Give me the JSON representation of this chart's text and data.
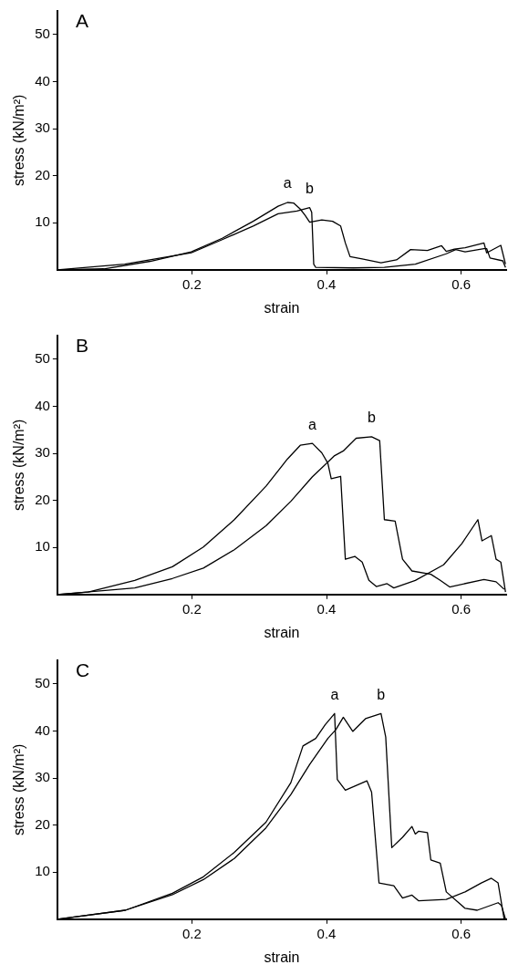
{
  "chart_data": [
    {
      "type": "line",
      "title": "A",
      "xlabel": "strain",
      "ylabel": "stress (kN/m²)",
      "xlim": [
        0,
        0.667
      ],
      "ylim": [
        0,
        55
      ],
      "xticks": [
        0.2,
        0.4,
        0.6
      ],
      "yticks": [
        10,
        20,
        30,
        40,
        50
      ],
      "grid": false,
      "legend": false,
      "marker": "none",
      "line_style": "solid",
      "series": [
        {
          "name": "a",
          "color": "#000000",
          "x": [
            0,
            0.069,
            0.138,
            0.199,
            0.245,
            0.291,
            0.328,
            0.342,
            0.351,
            0.361,
            0.368,
            0.375,
            0.393,
            0.409,
            0.421,
            0.428,
            0.435,
            0.453,
            0.481,
            0.504,
            0.525,
            0.55,
            0.571,
            0.578,
            0.59,
            0.606,
            0.634,
            0.638,
            0.659,
            0.666
          ],
          "values": [
            0,
            0.2,
            1.8,
            3.8,
            6.7,
            10.3,
            13.5,
            14.3,
            14.2,
            12.9,
            11.6,
            10.1,
            10.6,
            10.3,
            9.3,
            5.7,
            2.8,
            2.3,
            1.5,
            2.1,
            4.3,
            4.1,
            5.1,
            3.9,
            4.4,
            4.7,
            5.7,
            3.6,
            5.2,
            1.2
          ]
        },
        {
          "name": "b",
          "color": "#000000",
          "x": [
            0,
            0.1,
            0.199,
            0.245,
            0.291,
            0.328,
            0.356,
            0.375,
            0.378,
            0.381,
            0.384,
            0.44,
            0.486,
            0.532,
            0.578,
            0.592,
            0.606,
            0.634,
            0.638,
            0.643,
            0.662,
            0.666
          ],
          "values": [
            0,
            1.2,
            3.6,
            6.4,
            9.3,
            11.9,
            12.5,
            13.2,
            12.2,
            1.2,
            0.5,
            0.4,
            0.5,
            1.2,
            3.4,
            4.3,
            3.8,
            4.5,
            4.5,
            2.5,
            1.9,
            0.5
          ]
        }
      ]
    },
    {
      "type": "line",
      "title": "B",
      "xlabel": "strain",
      "ylabel": "stress (kN/m²)",
      "xlim": [
        0,
        0.667
      ],
      "ylim": [
        0,
        55
      ],
      "xticks": [
        0.2,
        0.4,
        0.6
      ],
      "yticks": [
        10,
        20,
        30,
        40,
        50
      ],
      "grid": false,
      "legend": false,
      "marker": "none",
      "line_style": "solid",
      "series": [
        {
          "name": "a",
          "color": "#000000",
          "x": [
            0,
            0.046,
            0.115,
            0.171,
            0.217,
            0.263,
            0.31,
            0.342,
            0.361,
            0.379,
            0.393,
            0.402,
            0.407,
            0.421,
            0.428,
            0.442,
            0.453,
            0.463,
            0.474,
            0.49,
            0.5,
            0.532,
            0.574,
            0.601,
            0.625,
            0.631,
            0.645,
            0.652,
            0.659,
            0.666
          ],
          "values": [
            0,
            0.5,
            3.0,
            5.9,
            10.1,
            15.9,
            23.0,
            28.8,
            31.7,
            32.1,
            30.1,
            27.9,
            24.6,
            25.1,
            7.5,
            8.1,
            6.9,
            3.0,
            1.7,
            2.3,
            1.4,
            3.0,
            6.3,
            10.8,
            15.9,
            11.4,
            12.5,
            7.5,
            6.9,
            0.5
          ]
        },
        {
          "name": "b",
          "color": "#000000",
          "x": [
            0,
            0.115,
            0.171,
            0.217,
            0.263,
            0.31,
            0.347,
            0.379,
            0.412,
            0.425,
            0.444,
            0.467,
            0.479,
            0.486,
            0.502,
            0.513,
            0.527,
            0.555,
            0.569,
            0.583,
            0.634,
            0.652,
            0.664
          ],
          "values": [
            0,
            1.4,
            3.4,
            5.6,
            9.5,
            14.6,
            19.8,
            25.0,
            29.5,
            30.5,
            33.2,
            33.5,
            32.7,
            15.9,
            15.6,
            7.5,
            5.0,
            4.3,
            3.0,
            1.6,
            3.2,
            2.7,
            1.1
          ]
        }
      ]
    },
    {
      "type": "line",
      "title": "C",
      "xlabel": "strain",
      "ylabel": "stress (kN/m²)",
      "xlim": [
        0,
        0.667
      ],
      "ylim": [
        0,
        55
      ],
      "xticks": [
        0.2,
        0.4,
        0.6
      ],
      "yticks": [
        10,
        20,
        30,
        40,
        50
      ],
      "grid": false,
      "legend": false,
      "marker": "none",
      "line_style": "solid",
      "series": [
        {
          "name": "a",
          "color": "#000000",
          "x": [
            0,
            0.101,
            0.171,
            0.217,
            0.263,
            0.31,
            0.347,
            0.365,
            0.384,
            0.398,
            0.412,
            0.416,
            0.428,
            0.46,
            0.467,
            0.478,
            0.5,
            0.513,
            0.527,
            0.537,
            0.578,
            0.606,
            0.63,
            0.645,
            0.655,
            0.664
          ],
          "values": [
            0,
            1.9,
            5.5,
            9.0,
            14.2,
            20.6,
            29.0,
            36.8,
            38.4,
            41.3,
            43.7,
            29.7,
            27.4,
            29.4,
            27.0,
            7.7,
            7.1,
            4.5,
            5.1,
            3.9,
            4.2,
            5.8,
            7.7,
            8.7,
            7.7,
            0
          ]
        },
        {
          "name": "b",
          "color": "#000000",
          "x": [
            0,
            0.101,
            0.171,
            0.217,
            0.263,
            0.31,
            0.347,
            0.375,
            0.402,
            0.414,
            0.425,
            0.439,
            0.458,
            0.481,
            0.488,
            0.497,
            0.513,
            0.527,
            0.532,
            0.537,
            0.55,
            0.555,
            0.569,
            0.578,
            0.606,
            0.624,
            0.655,
            0.66,
            0.666
          ],
          "values": [
            0,
            1.9,
            5.2,
            8.4,
            12.9,
            19.4,
            26.5,
            32.9,
            38.4,
            40.3,
            42.9,
            39.9,
            42.6,
            43.7,
            38.7,
            15.2,
            17.4,
            19.7,
            18.1,
            18.7,
            18.4,
            12.6,
            11.9,
            5.8,
            2.3,
            1.9,
            3.5,
            2.9,
            0
          ]
        }
      ]
    }
  ]
}
